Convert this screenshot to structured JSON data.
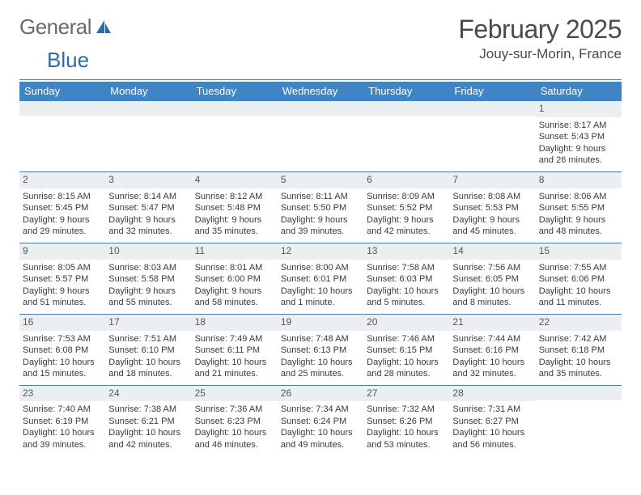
{
  "logo": {
    "text1": "General",
    "text2": "Blue"
  },
  "header": {
    "title": "February 2025",
    "subtitle": "Jouy-sur-Morin, France"
  },
  "colors": {
    "header_bg": "#3f84c4",
    "header_text": "#ffffff",
    "rule": "#4a7db5",
    "daynum_bg": "#eceff1",
    "logo_gray": "#6a6a6a",
    "logo_blue": "#2f6aa6",
    "body_text": "#3a3a3a"
  },
  "weekdays": [
    "Sunday",
    "Monday",
    "Tuesday",
    "Wednesday",
    "Thursday",
    "Friday",
    "Saturday"
  ],
  "weeks": [
    [
      {
        "day": "",
        "lines": []
      },
      {
        "day": "",
        "lines": []
      },
      {
        "day": "",
        "lines": []
      },
      {
        "day": "",
        "lines": []
      },
      {
        "day": "",
        "lines": []
      },
      {
        "day": "",
        "lines": []
      },
      {
        "day": "1",
        "lines": [
          "Sunrise: 8:17 AM",
          "Sunset: 5:43 PM",
          "Daylight: 9 hours and 26 minutes."
        ]
      }
    ],
    [
      {
        "day": "2",
        "lines": [
          "Sunrise: 8:15 AM",
          "Sunset: 5:45 PM",
          "Daylight: 9 hours and 29 minutes."
        ]
      },
      {
        "day": "3",
        "lines": [
          "Sunrise: 8:14 AM",
          "Sunset: 5:47 PM",
          "Daylight: 9 hours and 32 minutes."
        ]
      },
      {
        "day": "4",
        "lines": [
          "Sunrise: 8:12 AM",
          "Sunset: 5:48 PM",
          "Daylight: 9 hours and 35 minutes."
        ]
      },
      {
        "day": "5",
        "lines": [
          "Sunrise: 8:11 AM",
          "Sunset: 5:50 PM",
          "Daylight: 9 hours and 39 minutes."
        ]
      },
      {
        "day": "6",
        "lines": [
          "Sunrise: 8:09 AM",
          "Sunset: 5:52 PM",
          "Daylight: 9 hours and 42 minutes."
        ]
      },
      {
        "day": "7",
        "lines": [
          "Sunrise: 8:08 AM",
          "Sunset: 5:53 PM",
          "Daylight: 9 hours and 45 minutes."
        ]
      },
      {
        "day": "8",
        "lines": [
          "Sunrise: 8:06 AM",
          "Sunset: 5:55 PM",
          "Daylight: 9 hours and 48 minutes."
        ]
      }
    ],
    [
      {
        "day": "9",
        "lines": [
          "Sunrise: 8:05 AM",
          "Sunset: 5:57 PM",
          "Daylight: 9 hours and 51 minutes."
        ]
      },
      {
        "day": "10",
        "lines": [
          "Sunrise: 8:03 AM",
          "Sunset: 5:58 PM",
          "Daylight: 9 hours and 55 minutes."
        ]
      },
      {
        "day": "11",
        "lines": [
          "Sunrise: 8:01 AM",
          "Sunset: 6:00 PM",
          "Daylight: 9 hours and 58 minutes."
        ]
      },
      {
        "day": "12",
        "lines": [
          "Sunrise: 8:00 AM",
          "Sunset: 6:01 PM",
          "Daylight: 10 hours and 1 minute."
        ]
      },
      {
        "day": "13",
        "lines": [
          "Sunrise: 7:58 AM",
          "Sunset: 6:03 PM",
          "Daylight: 10 hours and 5 minutes."
        ]
      },
      {
        "day": "14",
        "lines": [
          "Sunrise: 7:56 AM",
          "Sunset: 6:05 PM",
          "Daylight: 10 hours and 8 minutes."
        ]
      },
      {
        "day": "15",
        "lines": [
          "Sunrise: 7:55 AM",
          "Sunset: 6:06 PM",
          "Daylight: 10 hours and 11 minutes."
        ]
      }
    ],
    [
      {
        "day": "16",
        "lines": [
          "Sunrise: 7:53 AM",
          "Sunset: 6:08 PM",
          "Daylight: 10 hours and 15 minutes."
        ]
      },
      {
        "day": "17",
        "lines": [
          "Sunrise: 7:51 AM",
          "Sunset: 6:10 PM",
          "Daylight: 10 hours and 18 minutes."
        ]
      },
      {
        "day": "18",
        "lines": [
          "Sunrise: 7:49 AM",
          "Sunset: 6:11 PM",
          "Daylight: 10 hours and 21 minutes."
        ]
      },
      {
        "day": "19",
        "lines": [
          "Sunrise: 7:48 AM",
          "Sunset: 6:13 PM",
          "Daylight: 10 hours and 25 minutes."
        ]
      },
      {
        "day": "20",
        "lines": [
          "Sunrise: 7:46 AM",
          "Sunset: 6:15 PM",
          "Daylight: 10 hours and 28 minutes."
        ]
      },
      {
        "day": "21",
        "lines": [
          "Sunrise: 7:44 AM",
          "Sunset: 6:16 PM",
          "Daylight: 10 hours and 32 minutes."
        ]
      },
      {
        "day": "22",
        "lines": [
          "Sunrise: 7:42 AM",
          "Sunset: 6:18 PM",
          "Daylight: 10 hours and 35 minutes."
        ]
      }
    ],
    [
      {
        "day": "23",
        "lines": [
          "Sunrise: 7:40 AM",
          "Sunset: 6:19 PM",
          "Daylight: 10 hours and 39 minutes."
        ]
      },
      {
        "day": "24",
        "lines": [
          "Sunrise: 7:38 AM",
          "Sunset: 6:21 PM",
          "Daylight: 10 hours and 42 minutes."
        ]
      },
      {
        "day": "25",
        "lines": [
          "Sunrise: 7:36 AM",
          "Sunset: 6:23 PM",
          "Daylight: 10 hours and 46 minutes."
        ]
      },
      {
        "day": "26",
        "lines": [
          "Sunrise: 7:34 AM",
          "Sunset: 6:24 PM",
          "Daylight: 10 hours and 49 minutes."
        ]
      },
      {
        "day": "27",
        "lines": [
          "Sunrise: 7:32 AM",
          "Sunset: 6:26 PM",
          "Daylight: 10 hours and 53 minutes."
        ]
      },
      {
        "day": "28",
        "lines": [
          "Sunrise: 7:31 AM",
          "Sunset: 6:27 PM",
          "Daylight: 10 hours and 56 minutes."
        ]
      },
      {
        "day": "",
        "lines": []
      }
    ]
  ]
}
